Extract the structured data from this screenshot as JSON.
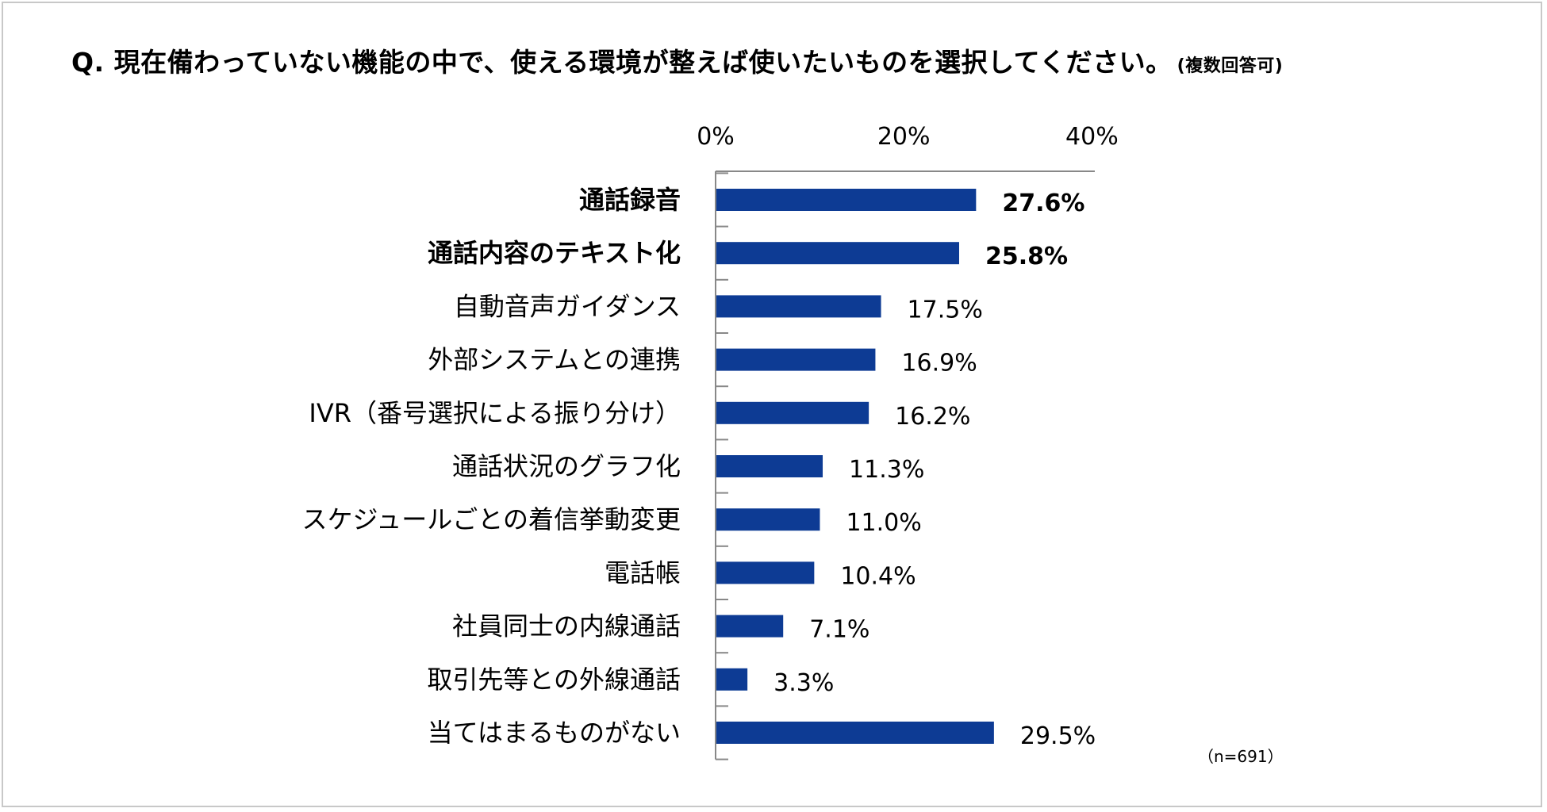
{
  "title": {
    "main": "Q. 現在備わっていない機能の中で、使える環境が整えば使いたいものを選択してください。",
    "sub": "(複数回答可)"
  },
  "note": "（n=691）",
  "colors": {
    "bar": "#0d3b94",
    "axis": "#888888"
  },
  "chart_data": {
    "type": "bar",
    "orientation": "horizontal",
    "title": "Q. 現在備わっていない機能の中で、使える環境が整えば使いたいものを選択してください。(複数回答可)",
    "xlabel": "",
    "ylabel": "",
    "xlim": [
      0,
      50
    ],
    "x_ticks": [
      0,
      20,
      40
    ],
    "x_tick_labels": [
      "0%",
      "20%",
      "40%"
    ],
    "categories": [
      "通話録音",
      "通話内容のテキスト化",
      "自動音声ガイダンス",
      "外部システムとの連携",
      "IVR（番号選択による振り分け）",
      "通話状況のグラフ化",
      "スケジュールごとの着信挙動変更",
      "電話帳",
      "社員同士の内線通話",
      "取引先等との外線通話",
      "当てはまるものがない"
    ],
    "values": [
      27.6,
      25.8,
      17.5,
      16.9,
      16.2,
      11.3,
      11.0,
      10.4,
      7.1,
      3.3,
      29.5
    ],
    "value_labels": [
      "27.6%",
      "25.8%",
      "17.5%",
      "16.9%",
      "16.2%",
      "11.3%",
      "11.0%",
      "10.4%",
      "7.1%",
      "3.3%",
      "29.5%"
    ],
    "bold": [
      true,
      true,
      false,
      false,
      false,
      false,
      false,
      false,
      false,
      false,
      false
    ]
  }
}
